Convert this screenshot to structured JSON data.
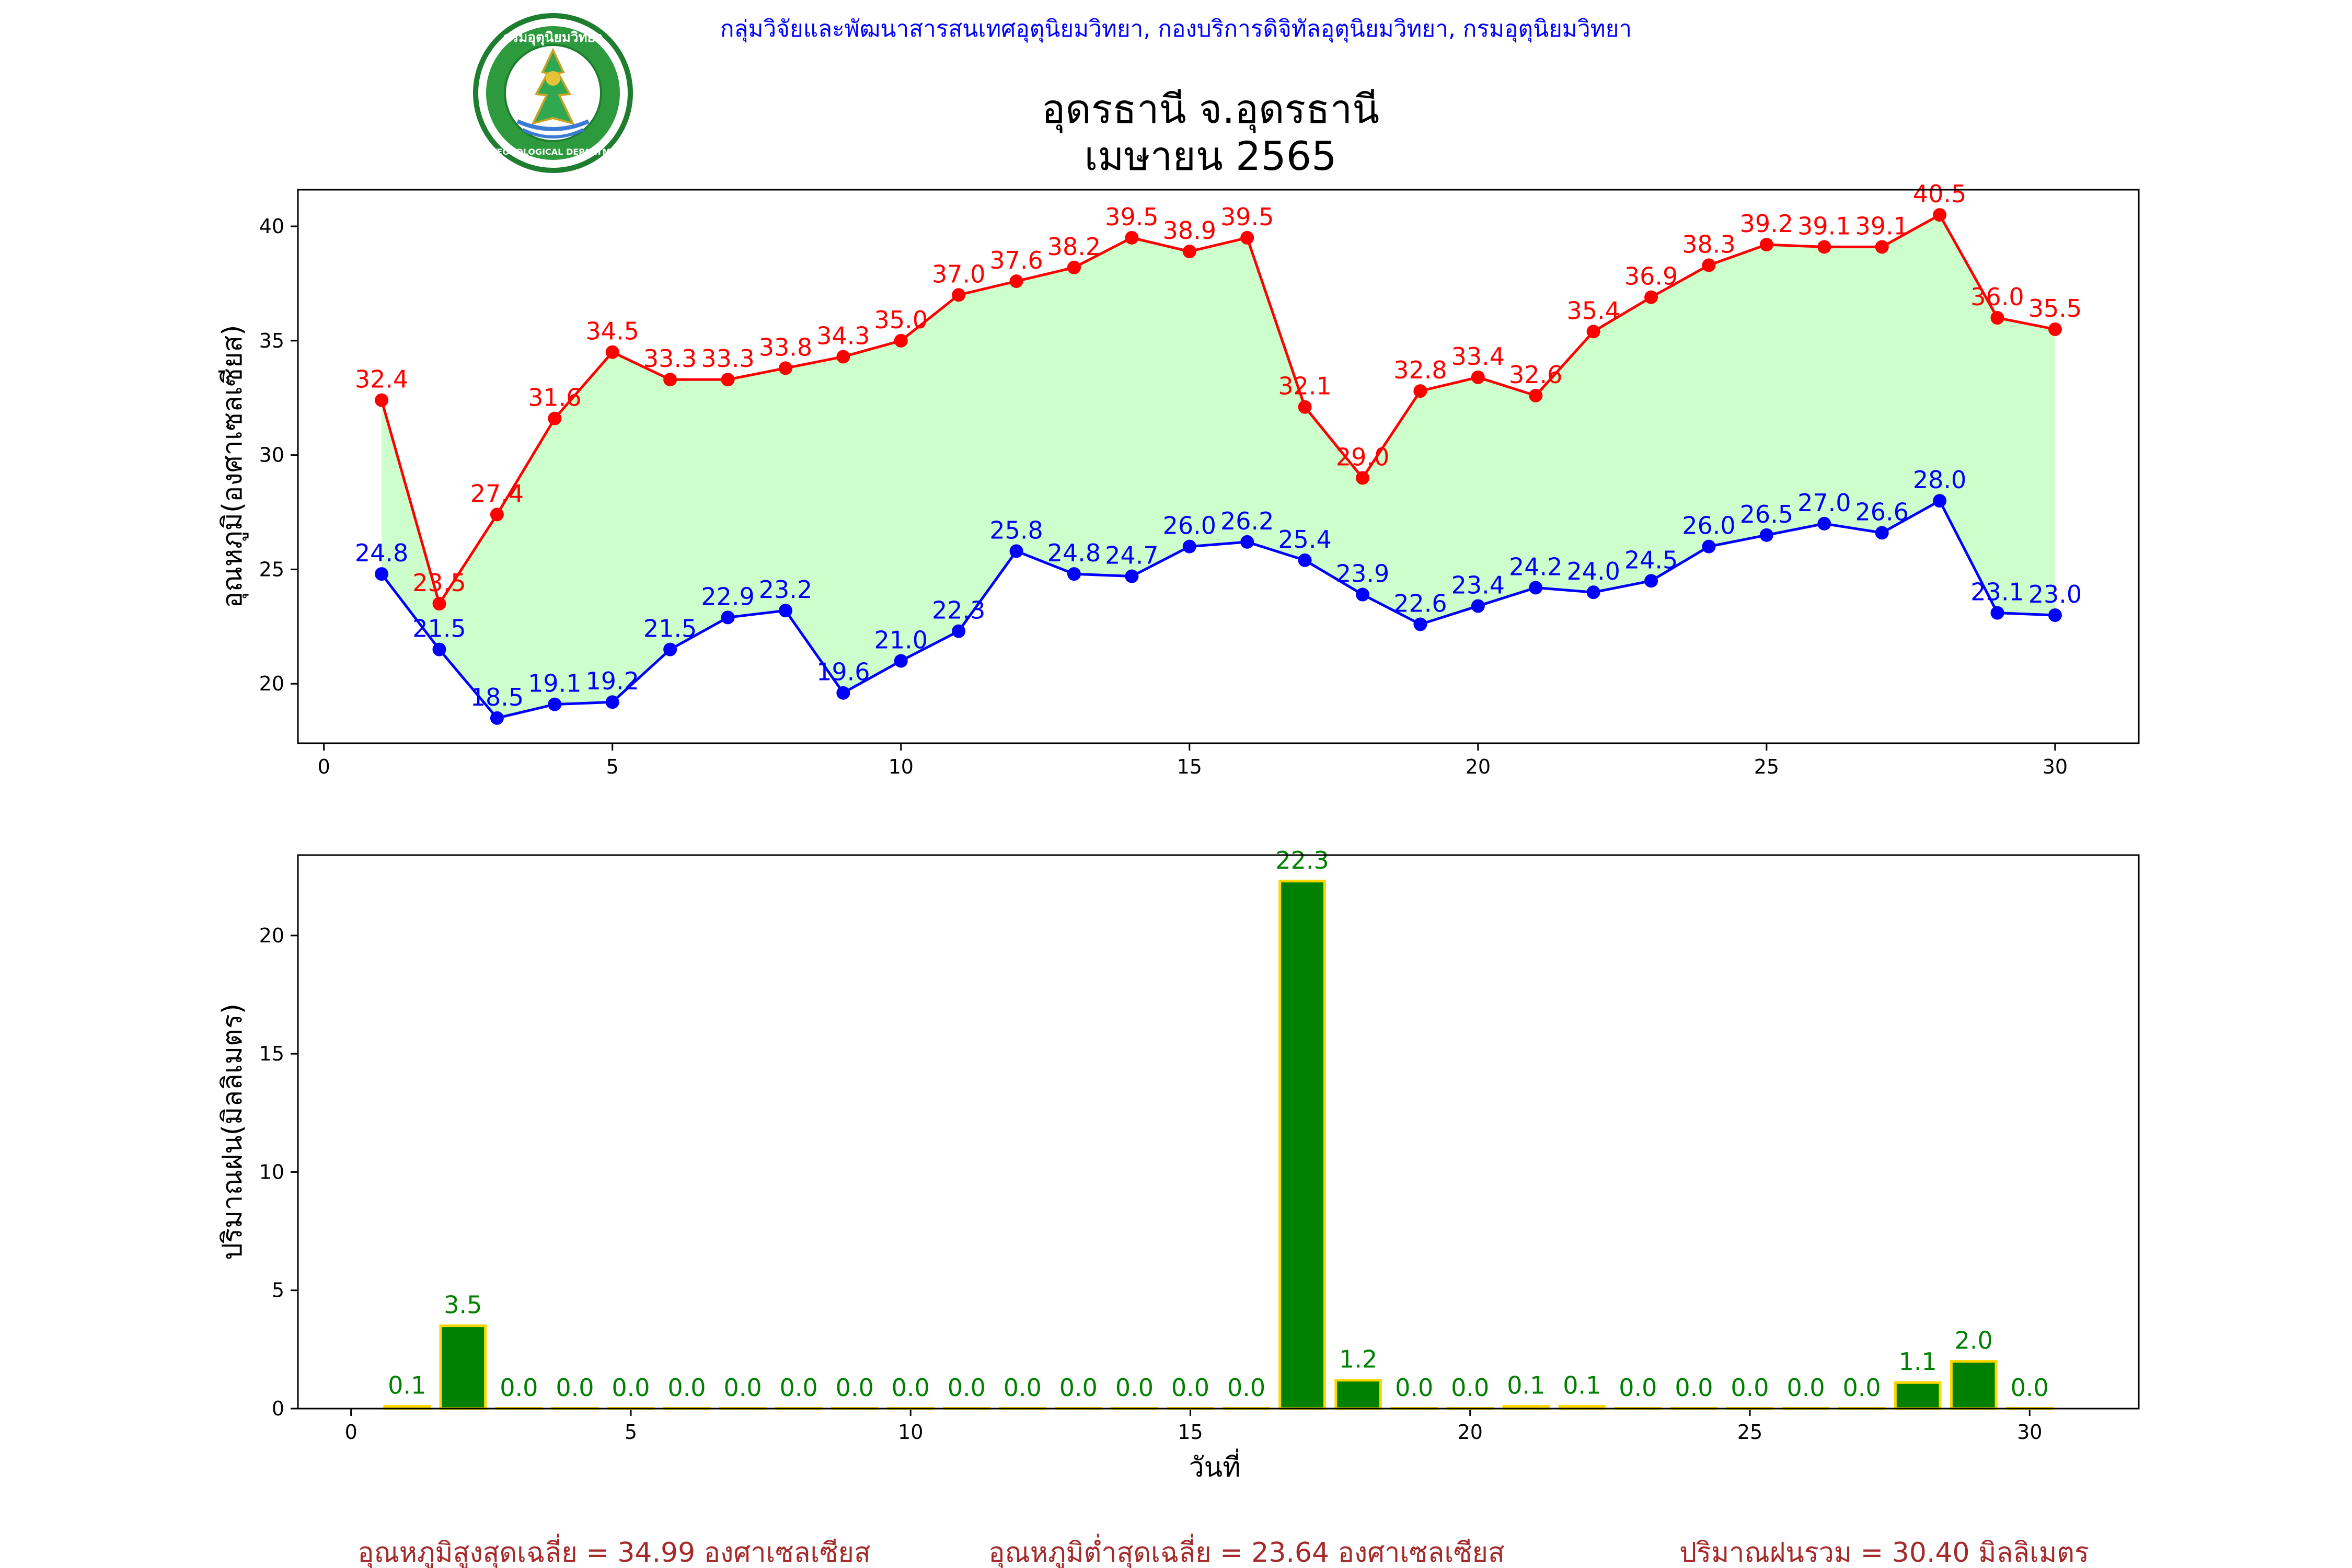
{
  "header": {
    "credit": "กลุ่มวิจัยและพัฒนาสารสนเทศอุตุนิยมวิทยา, กองบริการดิจิทัลอุตุนิยมวิทยา, กรมอุตุนิยมวิทยา",
    "title_line1": "อุดรธานี จ.อุดรธานี",
    "title_line2": "เมษายน 2565",
    "logo_text_top": "กรมอุตุนิยมวิทยา",
    "logo_text_bottom": "METEOROLOGICAL DEPARTMENT"
  },
  "colors": {
    "max": "#ff0000",
    "min": "#0000ff",
    "band": "#ccffcc",
    "rain_bar": "#008000",
    "rain_edge": "#ffd700",
    "rain_label": "#008000",
    "credit": "#0000ff",
    "summary": "#a52a2a"
  },
  "chart_data": [
    {
      "type": "line",
      "title": "",
      "xlabel": "",
      "ylabel": "อุณหภูมิ(องศาเซลเซียส)",
      "x": [
        1,
        2,
        3,
        4,
        5,
        6,
        7,
        8,
        9,
        10,
        11,
        12,
        13,
        14,
        15,
        16,
        17,
        18,
        19,
        20,
        21,
        22,
        23,
        24,
        25,
        26,
        27,
        28,
        29,
        30
      ],
      "series": [
        {
          "key": "max",
          "values": [
            32.4,
            23.5,
            27.4,
            31.6,
            34.5,
            33.3,
            33.3,
            33.8,
            34.3,
            35.0,
            37.0,
            37.6,
            38.2,
            39.5,
            38.9,
            39.5,
            32.1,
            29.0,
            32.8,
            33.4,
            32.6,
            35.4,
            36.9,
            38.3,
            39.2,
            39.1,
            39.1,
            40.5,
            36.0,
            35.5
          ]
        },
        {
          "key": "min",
          "values": [
            24.8,
            21.5,
            18.5,
            19.1,
            19.2,
            21.5,
            22.9,
            23.2,
            19.6,
            21.0,
            22.3,
            25.8,
            24.8,
            24.7,
            26.0,
            26.2,
            25.4,
            23.9,
            22.6,
            23.4,
            24.2,
            24.0,
            24.5,
            26.0,
            26.5,
            27.0,
            26.6,
            28.0,
            23.1,
            23.0
          ]
        }
      ],
      "fill_between": true,
      "xlim": [
        -0.45,
        31.45
      ],
      "ylim": [
        17.4,
        41.6
      ],
      "xticks": [
        0,
        5,
        10,
        15,
        20,
        25,
        30
      ],
      "yticks": [
        20,
        25,
        30,
        35,
        40
      ],
      "grid": false
    },
    {
      "type": "bar",
      "title": "",
      "xlabel": "วันที่",
      "ylabel": "ปริมาณฝน(มิลลิเมตร)",
      "x": [
        1,
        2,
        3,
        4,
        5,
        6,
        7,
        8,
        9,
        10,
        11,
        12,
        13,
        14,
        15,
        16,
        17,
        18,
        19,
        20,
        21,
        22,
        23,
        24,
        25,
        26,
        27,
        28,
        29,
        30
      ],
      "values": [
        0.1,
        3.5,
        0.0,
        0.0,
        0.0,
        0.0,
        0.0,
        0.0,
        0.0,
        0.0,
        0.0,
        0.0,
        0.0,
        0.0,
        0.0,
        0.0,
        22.3,
        1.2,
        0.0,
        0.0,
        0.1,
        0.1,
        0.0,
        0.0,
        0.0,
        0.0,
        0.0,
        1.1,
        2.0,
        0.0
      ],
      "labels": [
        "0.1",
        "3.5",
        "0.0",
        "0.0",
        "0.0",
        "0.0",
        "0.0",
        "0.0",
        "0.0",
        "0.0",
        "0.0",
        "0.0",
        "0.0",
        "0.0",
        "0.0",
        "0.0",
        "22.3",
        "1.2",
        "0.0",
        "0.0",
        "0.1",
        "0.1",
        "0.0",
        "0.0",
        "0.0",
        "0.0",
        "0.0",
        "1.1",
        "2.0",
        "0.0"
      ],
      "xlim": [
        -0.95,
        31.95
      ],
      "ylim": [
        0,
        23.4
      ],
      "xticks": [
        0,
        5,
        10,
        15,
        20,
        25,
        30
      ],
      "yticks": [
        0,
        5,
        10,
        15,
        20
      ],
      "grid": false
    }
  ],
  "summary": {
    "avg_max": "อุณหภูมิสูงสุดเฉลี่ย = 34.99 องศาเซลเซียส",
    "avg_min": "อุณหภูมิต่ำสุดเฉลี่ย = 23.64 องศาเซลเซียส",
    "total_rain": "ปริมาณฝนรวม = 30.40 มิลลิเมตร"
  }
}
